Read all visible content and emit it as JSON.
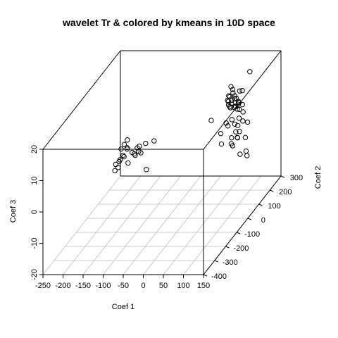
{
  "chart_data": {
    "type": "scatter",
    "title": "wavelet Tr & colored by kmeans in 10D space",
    "xlabel": "Coef 1",
    "ylabel": "Coef 2",
    "zlabel": "Coef 3",
    "xlim": [
      -250,
      150
    ],
    "ylim": [
      -400,
      300
    ],
    "zlim": [
      -20,
      20
    ],
    "x_ticks": [
      "-250",
      "-200",
      "-150",
      "-100",
      "-50",
      "0",
      "50",
      "100",
      "150"
    ],
    "y_ticks": [
      "-400",
      "-300",
      "-200",
      "-100",
      "0",
      "100",
      "200",
      "300"
    ],
    "z_ticks": [
      "-20",
      "-10",
      "0",
      "10",
      "20"
    ],
    "grid": "floor",
    "projection": "3d-box",
    "points": [
      {
        "x": 89,
        "y": 240,
        "z": 16
      },
      {
        "x": 95,
        "y": 150,
        "z": 14
      },
      {
        "x": 83,
        "y": 170,
        "z": 13
      },
      {
        "x": 63,
        "y": 180,
        "z": 13
      },
      {
        "x": 53,
        "y": 200,
        "z": 13
      },
      {
        "x": 83,
        "y": 140,
        "z": 12
      },
      {
        "x": 98,
        "y": 110,
        "z": 12
      },
      {
        "x": 63,
        "y": 150,
        "z": 12
      },
      {
        "x": 68,
        "y": 180,
        "z": 11
      },
      {
        "x": 63,
        "y": 140,
        "z": 11
      },
      {
        "x": 58,
        "y": 200,
        "z": 11
      },
      {
        "x": 53,
        "y": 180,
        "z": 11
      },
      {
        "x": 88,
        "y": 140,
        "z": 11
      },
      {
        "x": 73,
        "y": 160,
        "z": 11
      },
      {
        "x": 93,
        "y": 120,
        "z": 11
      },
      {
        "x": 53,
        "y": 170,
        "z": 10
      },
      {
        "x": 68,
        "y": 150,
        "z": 10
      },
      {
        "x": 83,
        "y": 120,
        "z": 10
      },
      {
        "x": 98,
        "y": 140,
        "z": 10
      },
      {
        "x": 63,
        "y": 170,
        "z": 10
      },
      {
        "x": 88,
        "y": 130,
        "z": 9
      },
      {
        "x": 68,
        "y": 140,
        "z": 9
      },
      {
        "x": 78,
        "y": 150,
        "z": 9
      },
      {
        "x": 58,
        "y": 160,
        "z": 9
      },
      {
        "x": 108,
        "y": 110,
        "z": 9
      },
      {
        "x": 58,
        "y": 170,
        "z": 8
      },
      {
        "x": 73,
        "y": 170,
        "z": 8
      },
      {
        "x": 88,
        "y": 150,
        "z": 8
      },
      {
        "x": 133,
        "y": 60,
        "z": 8
      },
      {
        "x": 113,
        "y": 90,
        "z": 7
      },
      {
        "x": 98,
        "y": 110,
        "z": 7
      },
      {
        "x": 83,
        "y": 100,
        "z": 7
      },
      {
        "x": 93,
        "y": 90,
        "z": 6
      },
      {
        "x": 103,
        "y": 80,
        "z": 6
      },
      {
        "x": 63,
        "y": 120,
        "z": 5
      },
      {
        "x": 73,
        "y": 100,
        "z": 5
      },
      {
        "x": 113,
        "y": 60,
        "z": 5
      },
      {
        "x": 98,
        "y": 80,
        "z": 4
      },
      {
        "x": 133,
        "y": 40,
        "z": 4
      },
      {
        "x": 113,
        "y": 40,
        "z": 4
      },
      {
        "x": 58,
        "y": 90,
        "z": 3
      },
      {
        "x": 93,
        "y": 60,
        "z": 3
      },
      {
        "x": 98,
        "y": 40,
        "z": 2
      },
      {
        "x": 108,
        "y": 60,
        "z": 3
      },
      {
        "x": 143,
        "y": 10,
        "z": 1
      },
      {
        "x": 68,
        "y": 60,
        "z": 1
      },
      {
        "x": 148,
        "y": 0,
        "z": 0
      },
      {
        "x": 93,
        "y": 70,
        "z": 0
      },
      {
        "x": 128,
        "y": 10,
        "z": 0
      },
      {
        "x": -10,
        "y": 250,
        "z": 0
      },
      {
        "x": -100,
        "y": 60,
        "z": 2
      },
      {
        "x": -160,
        "y": -20,
        "z": 3
      },
      {
        "x": -155,
        "y": -10,
        "z": 4
      },
      {
        "x": -150,
        "y": 0,
        "z": 5
      },
      {
        "x": -148,
        "y": -10,
        "z": 3
      },
      {
        "x": -145,
        "y": -20,
        "z": 3
      },
      {
        "x": -150,
        "y": -30,
        "z": 1
      },
      {
        "x": -155,
        "y": -20,
        "z": 1
      },
      {
        "x": -160,
        "y": -30,
        "z": 0
      },
      {
        "x": -168,
        "y": -40,
        "z": -1
      },
      {
        "x": -165,
        "y": -20,
        "z": -1
      },
      {
        "x": -162,
        "y": -40,
        "z": -2
      },
      {
        "x": -170,
        "y": -40,
        "z": -3
      },
      {
        "x": -140,
        "y": -30,
        "z": -1
      },
      {
        "x": -130,
        "y": -10,
        "z": 1
      },
      {
        "x": -125,
        "y": -20,
        "z": 1
      },
      {
        "x": -138,
        "y": 0,
        "z": 1
      },
      {
        "x": -128,
        "y": 10,
        "z": 2
      },
      {
        "x": -120,
        "y": 0,
        "z": 3
      },
      {
        "x": -110,
        "y": 20,
        "z": 3
      },
      {
        "x": -122,
        "y": 20,
        "z": 0
      },
      {
        "x": -130,
        "y": 30,
        "z": 0
      },
      {
        "x": -100,
        "y": -10,
        "z": -4
      }
    ]
  }
}
